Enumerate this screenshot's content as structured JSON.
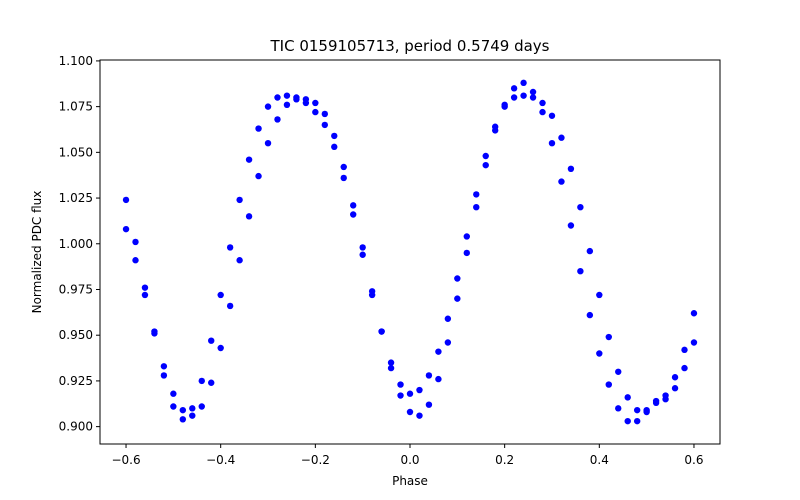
{
  "chart_data": {
    "type": "scatter",
    "title": "TIC 0159105713, period 0.5749 days",
    "xlabel": "Phase",
    "ylabel": "Normalized PDC flux",
    "xlim": [
      -0.655,
      0.655
    ],
    "ylim": [
      0.8905,
      1.1005
    ],
    "xticks": [
      -0.6,
      -0.4,
      -0.2,
      0.0,
      0.2,
      0.4,
      0.6
    ],
    "xtick_labels": [
      "−0.6",
      "−0.4",
      "−0.2",
      "0.0",
      "0.2",
      "0.4",
      "0.6"
    ],
    "yticks": [
      0.9,
      0.925,
      0.95,
      0.975,
      1.0,
      1.025,
      1.05,
      1.075,
      1.1
    ],
    "ytick_labels": [
      "0.900",
      "0.925",
      "0.950",
      "0.975",
      "1.000",
      "1.025",
      "1.050",
      "1.075",
      "1.100"
    ],
    "grid": false,
    "legend": "none",
    "marker_color": "#0000ff",
    "series": [
      {
        "x": [
          -0.6,
          -0.58,
          -0.56,
          -0.54,
          -0.52,
          -0.5,
          -0.48,
          -0.46,
          -0.44,
          -0.42,
          -0.4,
          -0.38,
          -0.36,
          -0.34,
          -0.32,
          -0.3,
          -0.28,
          -0.26,
          -0.24,
          -0.22,
          -0.2,
          -0.18,
          -0.16,
          -0.14,
          -0.12,
          -0.1,
          -0.08,
          -0.06,
          -0.04,
          -0.02,
          0.0,
          0.02,
          0.04,
          0.06,
          0.08,
          0.1,
          0.12,
          0.14,
          0.16,
          0.18,
          0.2,
          0.22,
          0.24,
          0.26,
          0.28,
          0.3,
          0.32,
          0.34,
          0.36,
          0.38,
          0.4,
          0.42,
          0.44,
          0.46,
          0.48,
          0.5,
          0.52,
          0.54,
          0.56,
          0.58,
          0.6
        ],
        "y": [
          1.024,
          1.001,
          0.976,
          0.951,
          0.928,
          0.911,
          0.904,
          0.91,
          0.925,
          0.947,
          0.972,
          0.998,
          1.024,
          1.046,
          1.063,
          1.075,
          1.08,
          1.081,
          1.08,
          1.079,
          1.077,
          1.071,
          1.059,
          1.042,
          1.021,
          0.998,
          0.974,
          0.952,
          0.932,
          0.917,
          0.908,
          0.906,
          0.912,
          0.926,
          0.946,
          0.97,
          0.995,
          1.02,
          1.043,
          1.062,
          1.076,
          1.085,
          1.088,
          1.083,
          1.072,
          1.055,
          1.034,
          1.01,
          0.985,
          0.961,
          0.94,
          0.923,
          0.91,
          0.903,
          0.903,
          0.909,
          0.914,
          0.917,
          0.927,
          0.942,
          0.962
        ]
      },
      {
        "x": [
          -0.6,
          -0.58,
          -0.56,
          -0.54,
          -0.52,
          -0.5,
          -0.48,
          -0.46,
          -0.44,
          -0.42,
          -0.4,
          -0.38,
          -0.36,
          -0.34,
          -0.32,
          -0.3,
          -0.28,
          -0.26,
          -0.24,
          -0.22,
          -0.2,
          -0.18,
          -0.16,
          -0.14,
          -0.12,
          -0.1,
          -0.08,
          -0.06,
          -0.04,
          -0.02,
          0.0,
          0.02,
          0.04,
          0.06,
          0.08,
          0.1,
          0.12,
          0.14,
          0.16,
          0.18,
          0.2,
          0.22,
          0.24,
          0.26,
          0.28,
          0.3,
          0.32,
          0.34,
          0.36,
          0.38,
          0.4,
          0.42,
          0.44,
          0.46,
          0.48,
          0.5,
          0.52,
          0.54,
          0.56,
          0.58,
          0.6
        ],
        "y": [
          1.008,
          0.991,
          0.972,
          0.952,
          0.933,
          0.918,
          0.909,
          0.906,
          0.911,
          0.924,
          0.943,
          0.966,
          0.991,
          1.015,
          1.037,
          1.055,
          1.068,
          1.076,
          1.079,
          1.077,
          1.072,
          1.065,
          1.053,
          1.036,
          1.016,
          0.994,
          0.972,
          0.952,
          0.935,
          0.923,
          0.918,
          0.92,
          0.928,
          0.941,
          0.959,
          0.981,
          1.004,
          1.027,
          1.048,
          1.064,
          1.075,
          1.08,
          1.081,
          1.08,
          1.077,
          1.07,
          1.058,
          1.041,
          1.02,
          0.996,
          0.972,
          0.949,
          0.93,
          0.916,
          0.909,
          0.908,
          0.913,
          0.915,
          0.921,
          0.932,
          0.946
        ]
      }
    ]
  }
}
